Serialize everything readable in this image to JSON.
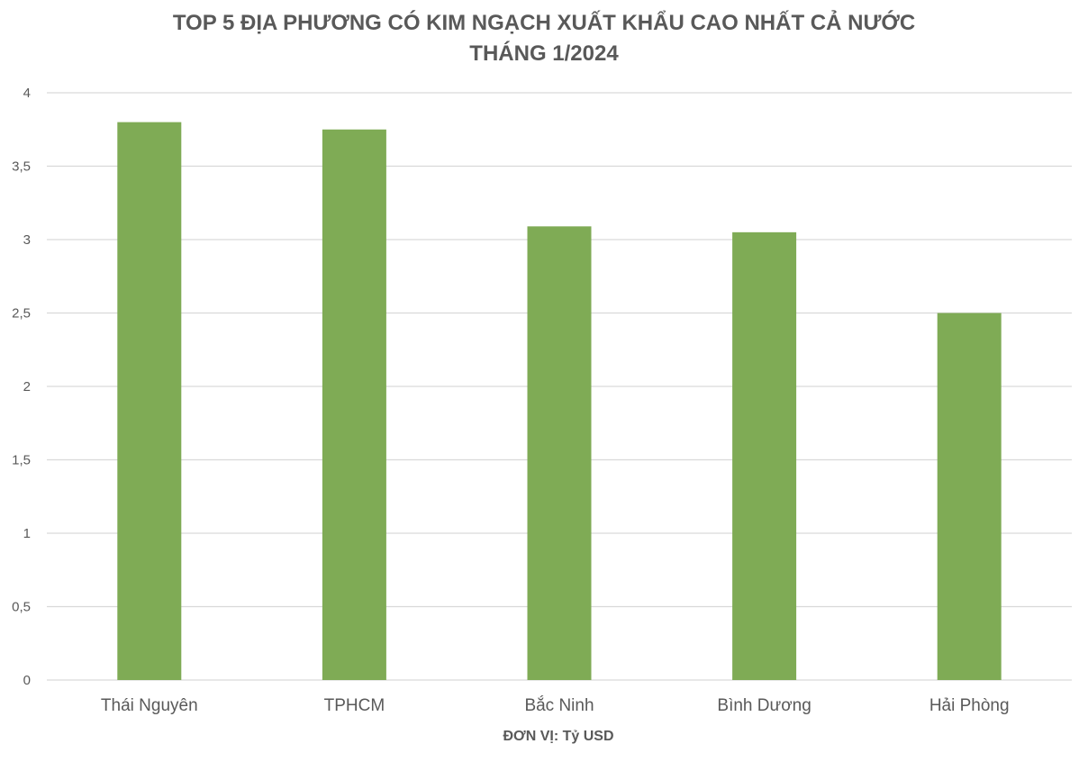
{
  "chart_data": {
    "type": "bar",
    "title_line1": "TOP 5 ĐỊA PHƯƠNG CÓ KIM NGẠCH XUẤT KHẨU CAO NHẤT CẢ NƯỚC",
    "title_line2": "THÁNG 1/2024",
    "xlabel": "ĐƠN VỊ: Tỷ USD",
    "ylabel": "",
    "categories": [
      "Thái Nguyên",
      "TPHCM",
      "Bắc Ninh",
      "Bình Dương",
      "Hải Phòng"
    ],
    "values": [
      3.8,
      3.75,
      3.09,
      3.05,
      2.5
    ],
    "ylim": [
      0,
      4
    ],
    "yticks": [
      0,
      0.5,
      1,
      1.5,
      2,
      2.5,
      3,
      3.5,
      4
    ],
    "ytick_labels": [
      "0",
      "0,5",
      "1",
      "1,5",
      "2",
      "2,5",
      "3",
      "3,5",
      "4"
    ],
    "grid": true,
    "legend": "none",
    "bar_color": "#7FAB55",
    "grid_color": "#D9D9D9",
    "text_color": "#595959"
  }
}
